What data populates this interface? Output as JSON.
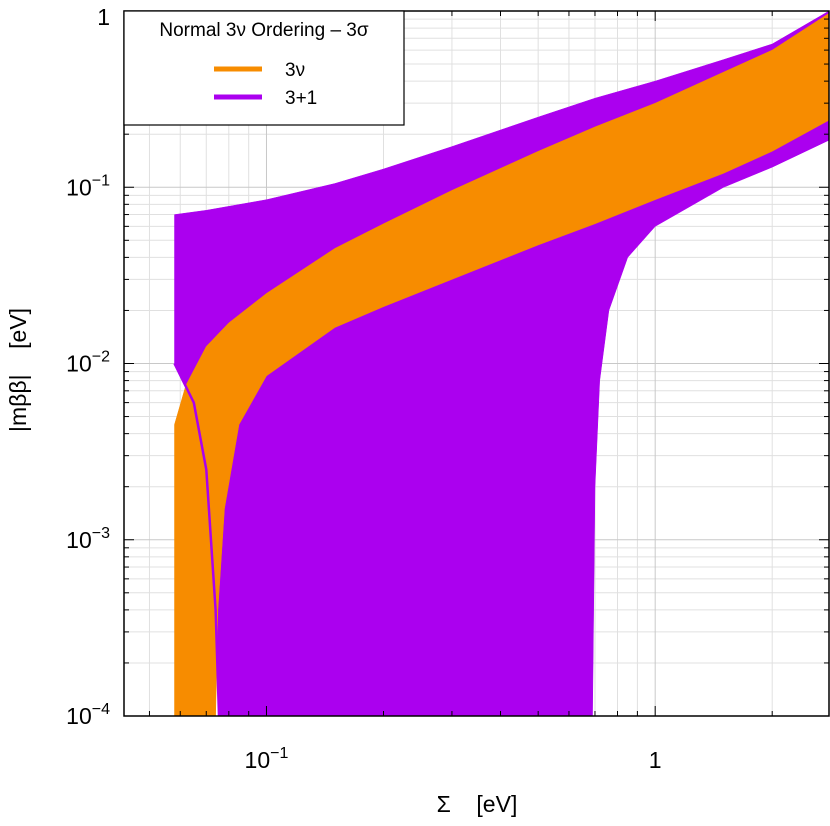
{
  "chart_data": {
    "type": "area",
    "title": "",
    "xlabel": "Σ    [eV]",
    "ylabel": "|mββ|    [eV]",
    "x_scale": "log",
    "y_scale": "log",
    "xlim": [
      0.043,
      2.8
    ],
    "ylim": [
      0.0001,
      1
    ],
    "grid": true,
    "x_ticks": [
      {
        "value": 0.1,
        "label": "10",
        "exp": "−1"
      },
      {
        "value": 1,
        "label": "1",
        "exp": ""
      }
    ],
    "y_ticks": [
      {
        "value": 0.0001,
        "label": "10",
        "exp": "−4"
      },
      {
        "value": 0.001,
        "label": "10",
        "exp": "−3"
      },
      {
        "value": 0.01,
        "label": "10",
        "exp": "−2"
      },
      {
        "value": 0.1,
        "label": "10",
        "exp": "−1"
      },
      {
        "value": 1,
        "label": "1",
        "exp": ""
      }
    ],
    "legend": {
      "title": "Normal 3ν Ordering – 3σ",
      "position": "top-left",
      "entries": [
        {
          "label": "3ν",
          "color": "#f78c00"
        },
        {
          "label": "3+1",
          "color": "#ab00ef"
        }
      ]
    },
    "series": [
      {
        "name": "3+1",
        "color": "#ab00ef",
        "upper": [
          [
            0.058,
            0.07
          ],
          [
            0.07,
            0.074
          ],
          [
            0.1,
            0.085
          ],
          [
            0.15,
            0.105
          ],
          [
            0.2,
            0.127
          ],
          [
            0.3,
            0.17
          ],
          [
            0.5,
            0.25
          ],
          [
            0.7,
            0.32
          ],
          [
            1,
            0.4
          ],
          [
            1.5,
            0.53
          ],
          [
            2,
            0.65
          ],
          [
            2.8,
            1.0
          ]
        ],
        "lower": [
          [
            0.058,
            0.01
          ],
          [
            0.065,
            0.006
          ],
          [
            0.07,
            0.0025
          ],
          [
            0.074,
            0.0004
          ],
          [
            0.0755,
            0.0001
          ],
          [
            0.69,
            0.0001
          ],
          [
            0.7,
            0.002
          ],
          [
            0.72,
            0.008
          ],
          [
            0.76,
            0.02
          ],
          [
            0.85,
            0.04
          ],
          [
            1,
            0.06
          ],
          [
            1.5,
            0.1
          ],
          [
            2,
            0.13
          ],
          [
            2.8,
            0.185
          ]
        ]
      },
      {
        "name": "3ν",
        "color": "#f78c00",
        "upper": [
          [
            0.058,
            0.0045
          ],
          [
            0.062,
            0.0075
          ],
          [
            0.07,
            0.0125
          ],
          [
            0.08,
            0.017
          ],
          [
            0.1,
            0.025
          ],
          [
            0.15,
            0.045
          ],
          [
            0.2,
            0.062
          ],
          [
            0.3,
            0.096
          ],
          [
            0.5,
            0.16
          ],
          [
            0.7,
            0.22
          ],
          [
            1,
            0.3
          ],
          [
            1.5,
            0.45
          ],
          [
            2,
            0.6
          ],
          [
            2.8,
            0.97
          ]
        ],
        "lower": [
          [
            0.058,
            0.0001
          ],
          [
            0.074,
            0.0001
          ],
          [
            0.075,
            0.0004
          ],
          [
            0.078,
            0.0015
          ],
          [
            0.085,
            0.0045
          ],
          [
            0.1,
            0.0085
          ],
          [
            0.15,
            0.016
          ],
          [
            0.2,
            0.021
          ],
          [
            0.3,
            0.03
          ],
          [
            0.5,
            0.047
          ],
          [
            0.7,
            0.062
          ],
          [
            1,
            0.085
          ],
          [
            1.5,
            0.12
          ],
          [
            2,
            0.16
          ],
          [
            2.8,
            0.24
          ]
        ]
      }
    ]
  }
}
